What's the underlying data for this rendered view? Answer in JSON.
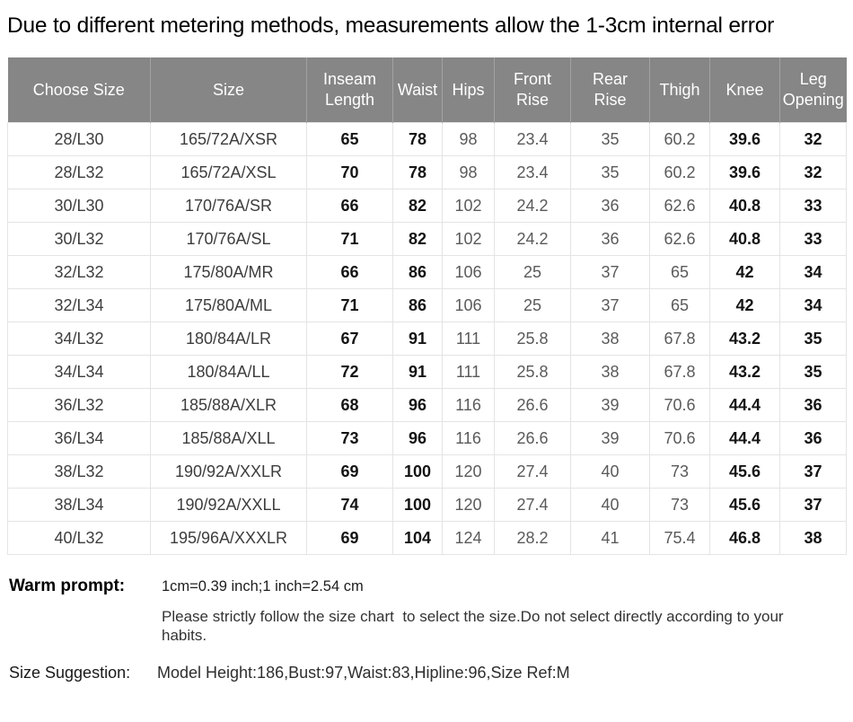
{
  "title": "Due to different metering methods, measurements allow the 1-3cm internal error",
  "table": {
    "headers": [
      "Choose Size",
      "Size",
      "Inseam\nLength",
      "Waist",
      "Hips",
      "Front\nRise",
      "Rear\nRise",
      "Thigh",
      "Knee",
      "Leg\nOpening"
    ],
    "rows": [
      [
        "28/L30",
        "165/72A/XSR",
        "65",
        "78",
        "98",
        "23.4",
        "35",
        "60.2",
        "39.6",
        "32"
      ],
      [
        "28/L32",
        "165/72A/XSL",
        "70",
        "78",
        "98",
        "23.4",
        "35",
        "60.2",
        "39.6",
        "32"
      ],
      [
        "30/L30",
        "170/76A/SR",
        "66",
        "82",
        "102",
        "24.2",
        "36",
        "62.6",
        "40.8",
        "33"
      ],
      [
        "30/L32",
        "170/76A/SL",
        "71",
        "82",
        "102",
        "24.2",
        "36",
        "62.6",
        "40.8",
        "33"
      ],
      [
        "32/L32",
        "175/80A/MR",
        "66",
        "86",
        "106",
        "25",
        "37",
        "65",
        "42",
        "34"
      ],
      [
        "32/L34",
        "175/80A/ML",
        "71",
        "86",
        "106",
        "25",
        "37",
        "65",
        "42",
        "34"
      ],
      [
        "34/L32",
        "180/84A/LR",
        "67",
        "91",
        "111",
        "25.8",
        "38",
        "67.8",
        "43.2",
        "35"
      ],
      [
        "34/L34",
        "180/84A/LL",
        "72",
        "91",
        "111",
        "25.8",
        "38",
        "67.8",
        "43.2",
        "35"
      ],
      [
        "36/L32",
        "185/88A/XLR",
        "68",
        "96",
        "116",
        "26.6",
        "39",
        "70.6",
        "44.4",
        "36"
      ],
      [
        "36/L34",
        "185/88A/XLL",
        "73",
        "96",
        "116",
        "26.6",
        "39",
        "70.6",
        "44.4",
        "36"
      ],
      [
        "38/L32",
        "190/92A/XXLR",
        "69",
        "100",
        "120",
        "27.4",
        "40",
        "73",
        "45.6",
        "37"
      ],
      [
        "38/L34",
        "190/92A/XXLL",
        "74",
        "100",
        "120",
        "27.4",
        "40",
        "73",
        "45.6",
        "37"
      ],
      [
        "40/L32",
        "195/96A/XXXLR",
        "69",
        "104",
        "124",
        "28.2",
        "41",
        "75.4",
        "46.8",
        "38"
      ]
    ]
  },
  "notes": {
    "warm_prompt_label": "Warm prompt:",
    "conversion": "1cm=0.39 inch;1 inch=2.54 cm",
    "advice": "Please strictly follow the size chart  to select the size.Do not select directly according to your habits.",
    "size_suggestion_label": "Size Suggestion:",
    "size_suggestion": "Model Height:186,Bust:97,Waist:83,Hipline:96,Size Ref:M"
  },
  "colors": {
    "header_bg": "#868686",
    "header_text": "#ffffff",
    "grid_line": "#e4e4e4",
    "dark_text": "#141414",
    "gray_text": "#5a5a5a"
  }
}
